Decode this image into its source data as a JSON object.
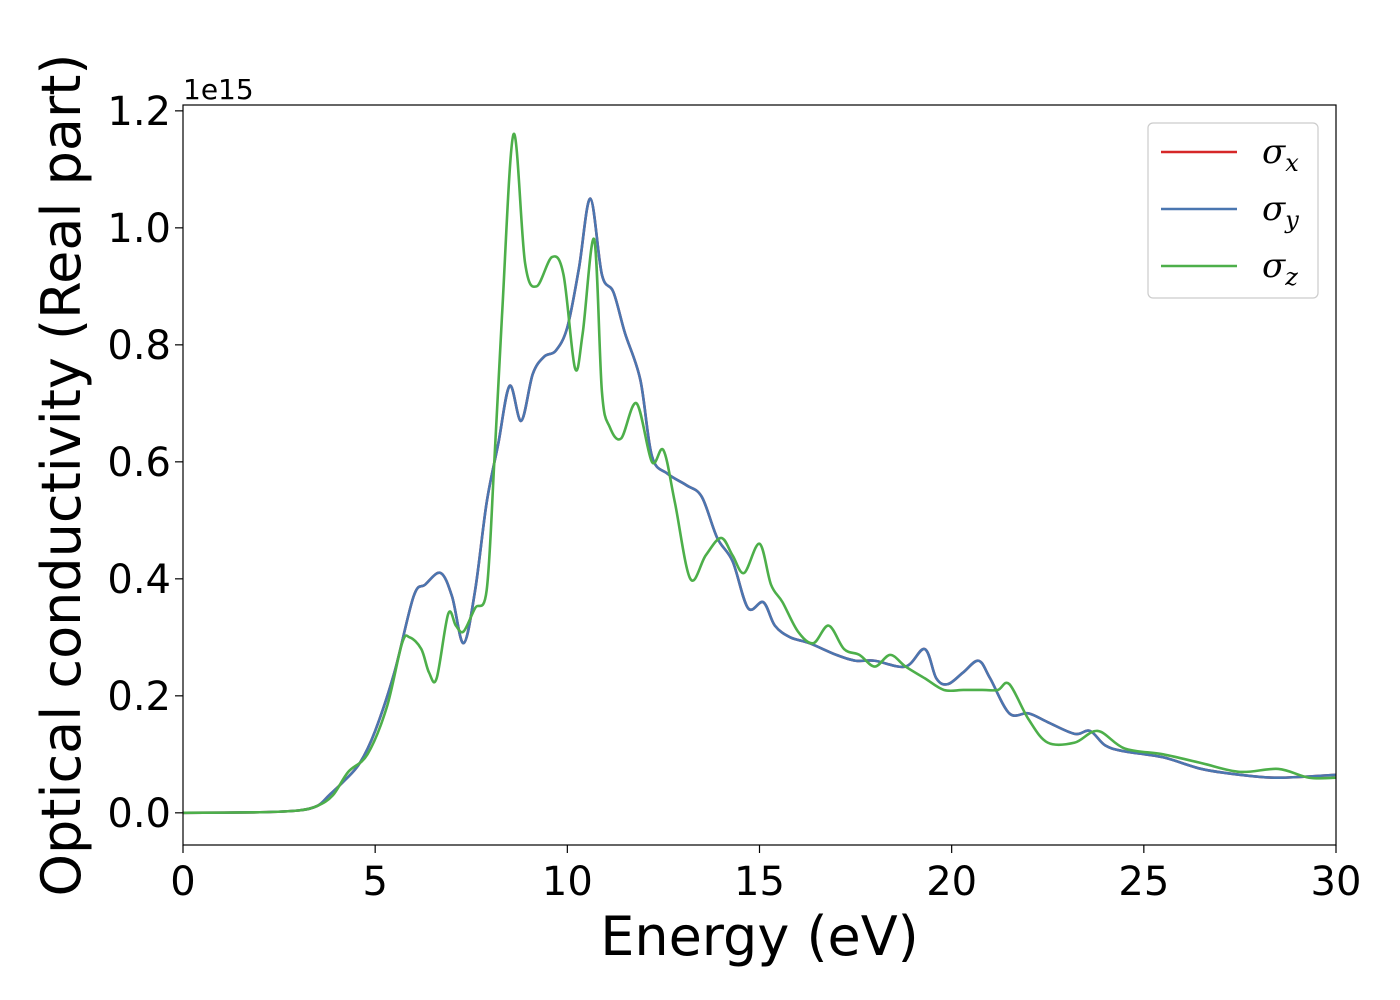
{
  "chart_data": {
    "type": "line",
    "title": "",
    "xlabel": "Energy (eV)",
    "ylabel": "Optical conductivity (Real part)",
    "y_offset_text": "1e15",
    "xlim": [
      0,
      30
    ],
    "ylim": [
      -0.055,
      1.21
    ],
    "x_ticks": [
      0,
      5,
      10,
      15,
      20,
      25,
      30
    ],
    "x_tick_labels": [
      "0",
      "5",
      "10",
      "15",
      "20",
      "25",
      "30"
    ],
    "y_ticks": [
      0.0,
      0.2,
      0.4,
      0.6,
      0.8,
      1.0,
      1.2
    ],
    "y_tick_labels": [
      "0.0",
      "0.2",
      "0.4",
      "0.6",
      "0.8",
      "1.0",
      "1.2"
    ],
    "grid": false,
    "legend_position": "top-right",
    "series": [
      {
        "name": "σx",
        "legend_symbol": "σ",
        "legend_subscript": "x",
        "color": "#d62728",
        "x": [
          0,
          2,
          3,
          3.5,
          3.8,
          4.2,
          4.6,
          5.0,
          5.5,
          6.0,
          6.3,
          6.7,
          7.0,
          7.3,
          7.6,
          7.9,
          8.2,
          8.5,
          8.8,
          9.1,
          9.4,
          9.7,
          10.0,
          10.3,
          10.6,
          10.9,
          11.2,
          11.5,
          11.9,
          12.2,
          12.6,
          13.1,
          13.5,
          13.9,
          14.3,
          14.7,
          15.1,
          15.4,
          15.8,
          16.3,
          17.0,
          17.5,
          18.0,
          18.8,
          19.3,
          19.6,
          19.9,
          20.3,
          20.7,
          21.0,
          21.5,
          22.0,
          22.5,
          23.2,
          23.6,
          24.0,
          24.5,
          25.5,
          26.5,
          27.5,
          28.5,
          30
        ],
        "y": [
          0,
          0.001,
          0.004,
          0.012,
          0.03,
          0.055,
          0.085,
          0.14,
          0.24,
          0.37,
          0.39,
          0.41,
          0.37,
          0.29,
          0.38,
          0.53,
          0.63,
          0.73,
          0.67,
          0.75,
          0.78,
          0.79,
          0.83,
          0.93,
          1.05,
          0.92,
          0.89,
          0.82,
          0.74,
          0.61,
          0.58,
          0.56,
          0.54,
          0.47,
          0.43,
          0.35,
          0.36,
          0.32,
          0.3,
          0.29,
          0.27,
          0.26,
          0.26,
          0.25,
          0.28,
          0.23,
          0.22,
          0.24,
          0.26,
          0.23,
          0.17,
          0.17,
          0.155,
          0.135,
          0.14,
          0.115,
          0.105,
          0.095,
          0.075,
          0.065,
          0.06,
          0.065
        ]
      },
      {
        "name": "σy",
        "legend_symbol": "σ",
        "legend_subscript": "y",
        "color": "#4a76b0",
        "x": [
          0,
          2,
          3,
          3.5,
          3.8,
          4.2,
          4.6,
          5.0,
          5.5,
          6.0,
          6.3,
          6.7,
          7.0,
          7.3,
          7.6,
          7.9,
          8.2,
          8.5,
          8.8,
          9.1,
          9.4,
          9.7,
          10.0,
          10.3,
          10.6,
          10.9,
          11.2,
          11.5,
          11.9,
          12.2,
          12.6,
          13.1,
          13.5,
          13.9,
          14.3,
          14.7,
          15.1,
          15.4,
          15.8,
          16.3,
          17.0,
          17.5,
          18.0,
          18.8,
          19.3,
          19.6,
          19.9,
          20.3,
          20.7,
          21.0,
          21.5,
          22.0,
          22.5,
          23.2,
          23.6,
          24.0,
          24.5,
          25.5,
          26.5,
          27.5,
          28.5,
          30
        ],
        "y": [
          0,
          0.001,
          0.004,
          0.012,
          0.03,
          0.055,
          0.085,
          0.14,
          0.24,
          0.37,
          0.39,
          0.41,
          0.37,
          0.29,
          0.38,
          0.53,
          0.63,
          0.73,
          0.67,
          0.75,
          0.78,
          0.79,
          0.83,
          0.93,
          1.05,
          0.92,
          0.89,
          0.82,
          0.74,
          0.61,
          0.58,
          0.56,
          0.54,
          0.47,
          0.43,
          0.35,
          0.36,
          0.32,
          0.3,
          0.29,
          0.27,
          0.26,
          0.26,
          0.25,
          0.28,
          0.23,
          0.22,
          0.24,
          0.26,
          0.23,
          0.17,
          0.17,
          0.155,
          0.135,
          0.14,
          0.115,
          0.105,
          0.095,
          0.075,
          0.065,
          0.06,
          0.065
        ]
      },
      {
        "name": "σz",
        "legend_symbol": "σ",
        "legend_subscript": "z",
        "color": "#4daf4a",
        "x": [
          0,
          2,
          3,
          3.5,
          3.9,
          4.3,
          4.8,
          5.3,
          5.7,
          5.9,
          6.2,
          6.4,
          6.6,
          6.9,
          7.1,
          7.3,
          7.6,
          7.9,
          8.1,
          8.3,
          8.6,
          8.9,
          9.2,
          9.6,
          9.9,
          10.2,
          10.4,
          10.7,
          10.9,
          11.1,
          11.4,
          11.8,
          12.2,
          12.5,
          12.8,
          13.2,
          13.6,
          14.0,
          14.3,
          14.6,
          15.0,
          15.3,
          15.6,
          16.0,
          16.4,
          16.8,
          17.2,
          17.6,
          18.0,
          18.4,
          18.8,
          19.3,
          19.8,
          20.3,
          20.8,
          21.2,
          21.5,
          22.0,
          22.5,
          23.2,
          23.8,
          24.5,
          25.5,
          26.5,
          27.5,
          28.5,
          29.3,
          30
        ],
        "y": [
          0,
          0.001,
          0.004,
          0.012,
          0.03,
          0.07,
          0.1,
          0.18,
          0.29,
          0.3,
          0.28,
          0.24,
          0.23,
          0.34,
          0.32,
          0.31,
          0.35,
          0.38,
          0.6,
          0.85,
          1.16,
          0.94,
          0.9,
          0.95,
          0.92,
          0.76,
          0.82,
          0.98,
          0.72,
          0.66,
          0.64,
          0.7,
          0.6,
          0.62,
          0.53,
          0.4,
          0.44,
          0.47,
          0.44,
          0.41,
          0.46,
          0.39,
          0.36,
          0.31,
          0.29,
          0.32,
          0.28,
          0.27,
          0.25,
          0.27,
          0.25,
          0.23,
          0.21,
          0.21,
          0.21,
          0.21,
          0.22,
          0.16,
          0.12,
          0.12,
          0.14,
          0.11,
          0.1,
          0.085,
          0.07,
          0.075,
          0.06,
          0.06
        ]
      }
    ]
  }
}
